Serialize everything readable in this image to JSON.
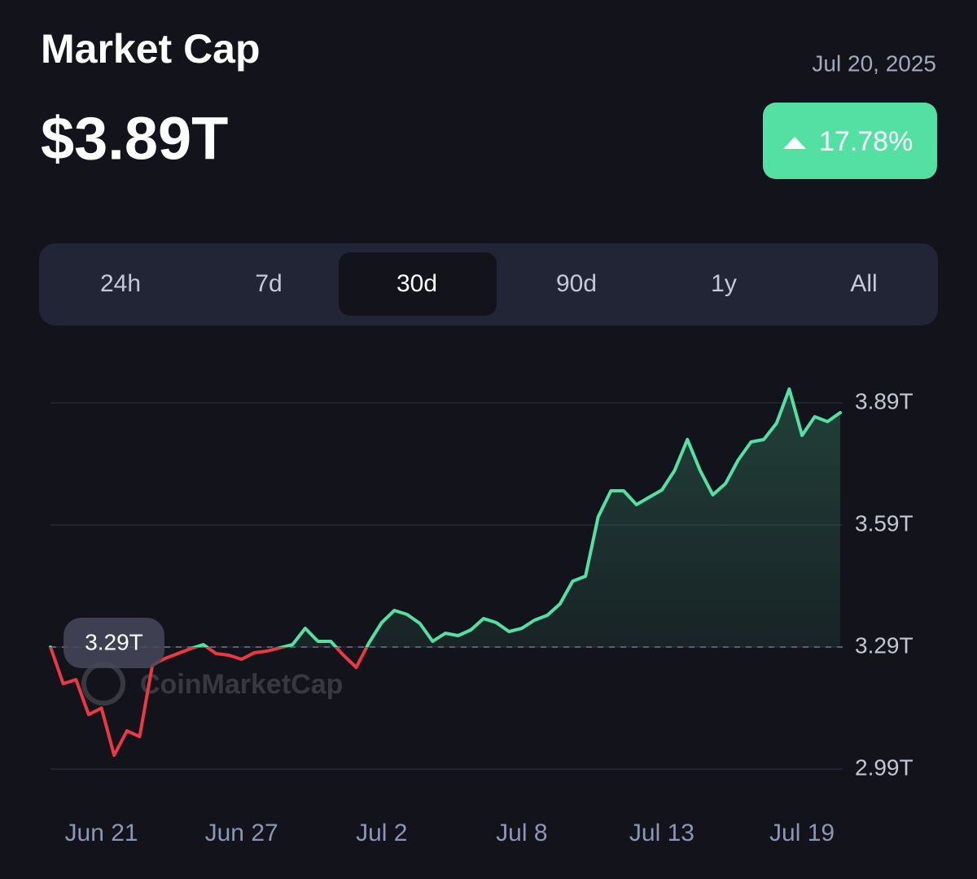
{
  "header": {
    "title": "Market Cap",
    "value": "$3.89T",
    "date": "Jul 20, 2025",
    "change": "17.78%"
  },
  "tabs": {
    "items": [
      "24h",
      "7d",
      "30d",
      "90d",
      "1y",
      "All"
    ],
    "selected": 2
  },
  "chart_data": {
    "type": "line",
    "watermark": "CoinMarketCap",
    "categories": [
      null,
      null,
      null,
      null,
      "Jun 21",
      null,
      null,
      null,
      null,
      null,
      null,
      null,
      null,
      null,
      null,
      "Jun 27",
      null,
      null,
      null,
      null,
      null,
      null,
      null,
      null,
      null,
      null,
      "Jul 2",
      null,
      null,
      null,
      null,
      null,
      null,
      null,
      null,
      null,
      null,
      "Jul 8",
      null,
      null,
      null,
      null,
      null,
      null,
      null,
      null,
      null,
      null,
      "Jul 13",
      null,
      null,
      null,
      null,
      null,
      null,
      null,
      null,
      null,
      null,
      "Jul 19",
      null,
      null,
      null
    ],
    "values": [
      3.29,
      3.2,
      3.21,
      3.124,
      3.14,
      3.024,
      3.084,
      3.07,
      3.246,
      3.262,
      3.274,
      3.286,
      3.296,
      3.274,
      3.27,
      3.26,
      3.276,
      3.28,
      3.288,
      3.296,
      3.336,
      3.304,
      3.304,
      3.27,
      3.24,
      3.3,
      3.35,
      3.38,
      3.37,
      3.348,
      3.304,
      3.324,
      3.318,
      3.332,
      3.36,
      3.35,
      3.328,
      3.336,
      3.356,
      3.368,
      3.396,
      3.452,
      3.464,
      3.61,
      3.674,
      3.674,
      3.64,
      3.658,
      3.676,
      3.724,
      3.8,
      3.724,
      3.664,
      3.692,
      3.75,
      3.794,
      3.8,
      3.84,
      3.924,
      3.81,
      3.856,
      3.844,
      3.866
    ],
    "baseline": {
      "value": 3.29,
      "label": "3.29T"
    },
    "color_up": "#55e0a3",
    "color_down": "#ea3943",
    "ylim": [
      2.96,
      3.96
    ],
    "yticks": [
      {
        "value": 3.89,
        "label": "3.89T"
      },
      {
        "value": 3.59,
        "label": "3.59T"
      },
      {
        "value": 3.29,
        "label": "3.29T"
      },
      {
        "value": 2.99,
        "label": "2.99T"
      }
    ],
    "grid": true
  }
}
